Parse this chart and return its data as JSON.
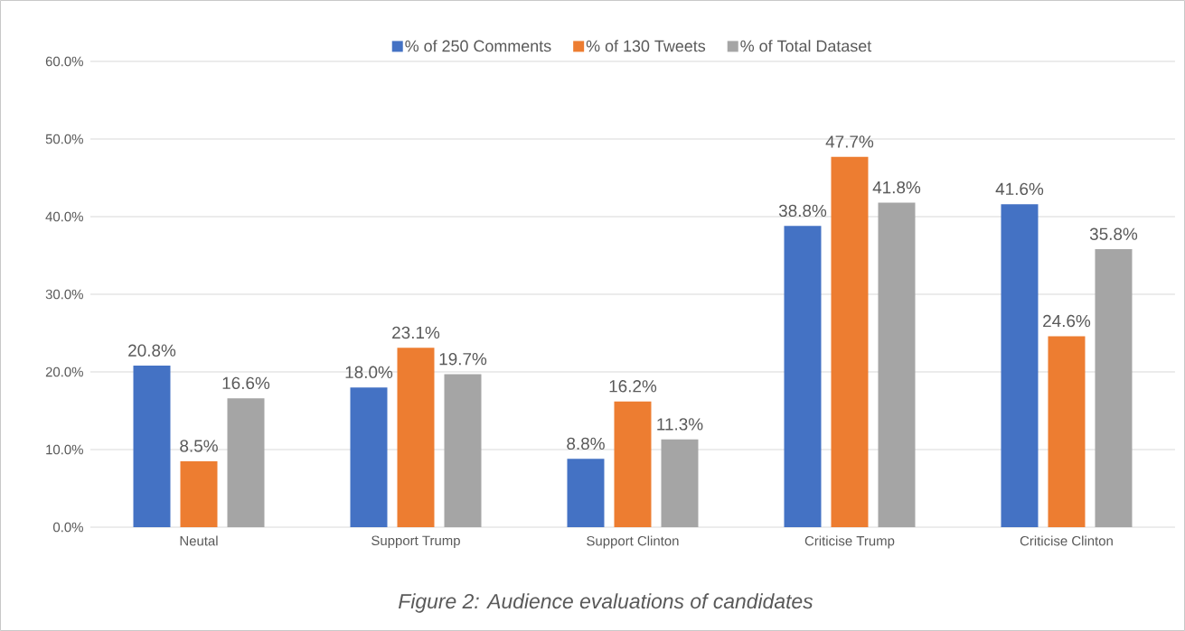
{
  "chart_data": {
    "type": "bar",
    "categories": [
      "Neutal",
      "Support Trump",
      "Support Clinton",
      "Criticise Trump",
      "Criticise Clinton"
    ],
    "series": [
      {
        "name": "% of 250 Comments",
        "color": "#4472c4",
        "values": [
          20.8,
          18.0,
          8.8,
          38.8,
          41.6
        ],
        "value_labels": [
          "20.8%",
          "18.0%",
          "8.8%",
          "38.8%",
          "41.6%"
        ]
      },
      {
        "name": "% of 130 Tweets",
        "color": "#ed7d31",
        "values": [
          8.5,
          23.1,
          16.2,
          47.7,
          24.6
        ],
        "value_labels": [
          "8.5%",
          "23.1%",
          "16.2%",
          "47.7%",
          "24.6%"
        ]
      },
      {
        "name": "% of Total Dataset",
        "color": "#a5a5a5",
        "values": [
          16.6,
          19.7,
          11.3,
          41.8,
          35.8
        ],
        "value_labels": [
          "16.6%",
          "19.7%",
          "11.3%",
          "41.8%",
          "35.8%"
        ]
      }
    ],
    "ylim": [
      0,
      60
    ],
    "yticks": [
      {
        "value": 0,
        "label": "0.0%"
      },
      {
        "value": 10,
        "label": "10.0%"
      },
      {
        "value": 20,
        "label": "20.0%"
      },
      {
        "value": 30,
        "label": "30.0%"
      },
      {
        "value": 40,
        "label": "40.0%"
      },
      {
        "value": 50,
        "label": "50.0%"
      },
      {
        "value": 60,
        "label": "60.0%"
      }
    ],
    "grid": "y",
    "legend": "top",
    "annotations": [
      "Figure 2: Audience evaluations of candidates"
    ]
  }
}
